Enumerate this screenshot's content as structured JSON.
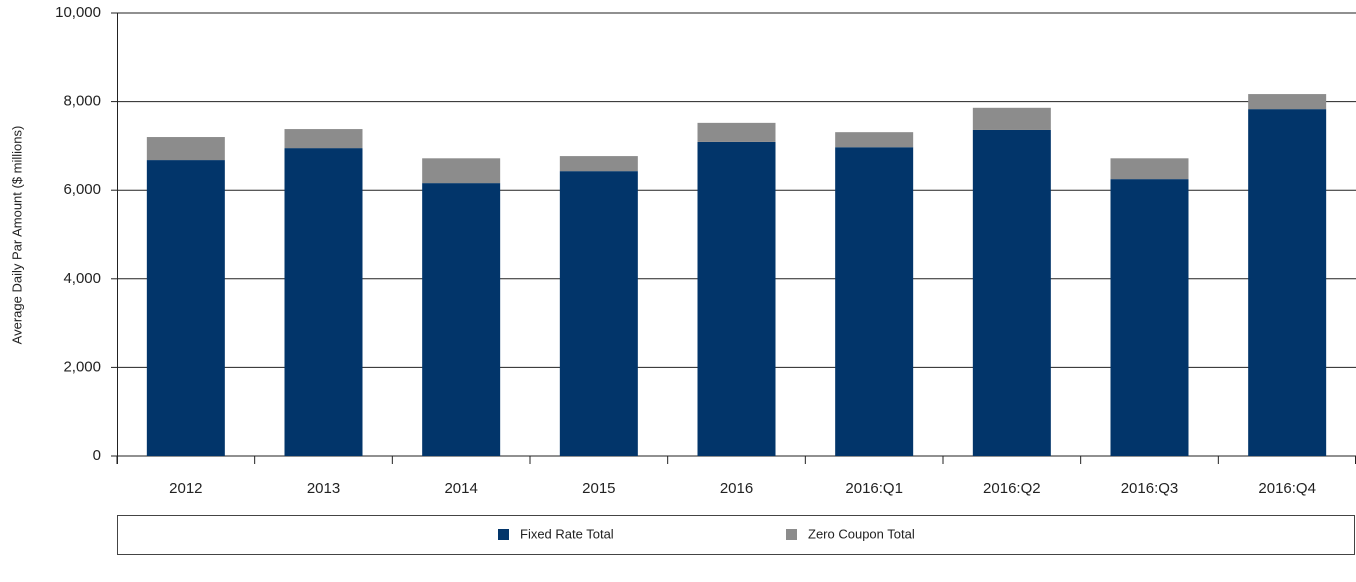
{
  "chart_data": {
    "type": "stacked_bar",
    "y_axis_label": "Average Daily Par Amount ($ millions)",
    "categories": [
      "2012",
      "2013",
      "2014",
      "2015",
      "2016",
      "2016:Q1",
      "2016:Q2",
      "2016:Q3",
      "2016:Q4"
    ],
    "series": [
      {
        "name": "Fixed Rate Total",
        "color": "#02356a",
        "values": [
          6680,
          6950,
          6160,
          6430,
          7090,
          6970,
          7360,
          6250,
          7830
        ]
      },
      {
        "name": "Zero Coupon Total",
        "color": "#8c8c8c",
        "values": [
          520,
          430,
          560,
          340,
          430,
          340,
          500,
          470,
          340
        ]
      }
    ],
    "ylim": [
      0,
      10000
    ],
    "yticks": [
      0,
      {
        "value": 2000,
        "label": "2,000"
      },
      {
        "value": 4000,
        "label": "4,000"
      },
      {
        "value": 6000,
        "label": "6,000"
      },
      {
        "value": 8000,
        "label": "8,000"
      },
      {
        "value": 10000,
        "label": "10,000"
      }
    ],
    "grid": true,
    "legend": "bottom"
  }
}
